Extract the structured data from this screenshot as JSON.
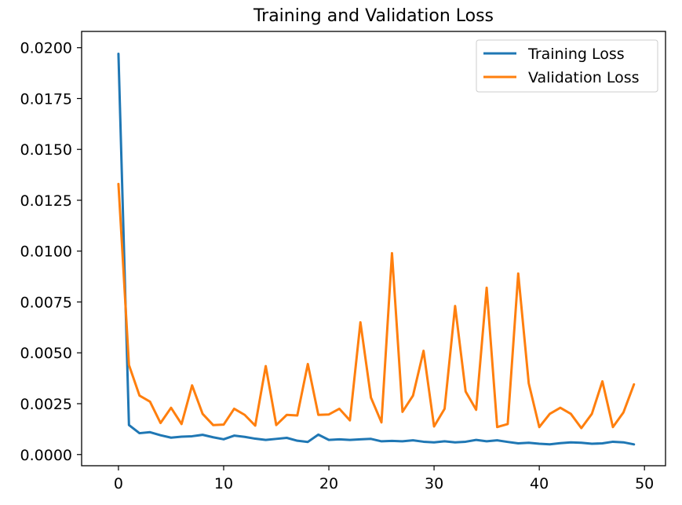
{
  "chart_data": {
    "type": "line",
    "title": "Training and Validation Loss",
    "xlabel": "",
    "ylabel": "",
    "xlim": [
      -3.5,
      52
    ],
    "ylim": [
      -0.00055,
      0.0208
    ],
    "x_ticks": [
      0,
      10,
      20,
      30,
      40,
      50
    ],
    "x_tick_labels": [
      "0",
      "10",
      "20",
      "30",
      "40",
      "50"
    ],
    "y_ticks": [
      0.0,
      0.0025,
      0.005,
      0.0075,
      0.01,
      0.0125,
      0.015,
      0.0175,
      0.02
    ],
    "y_tick_labels": [
      "0.0000",
      "0.0025",
      "0.0050",
      "0.0075",
      "0.0100",
      "0.0125",
      "0.0150",
      "0.0175",
      "0.0200"
    ],
    "grid": false,
    "legend_position": "top-right",
    "x": [
      0,
      1,
      2,
      3,
      4,
      5,
      6,
      7,
      8,
      9,
      10,
      11,
      12,
      13,
      14,
      15,
      16,
      17,
      18,
      19,
      20,
      21,
      22,
      23,
      24,
      25,
      26,
      27,
      28,
      29,
      30,
      31,
      32,
      33,
      34,
      35,
      36,
      37,
      38,
      39,
      40,
      41,
      42,
      43,
      44,
      45,
      46,
      47,
      48,
      49
    ],
    "series": [
      {
        "name": "Training Loss",
        "color": "#1f77b4",
        "values": [
          0.0197,
          0.00145,
          0.00105,
          0.0011,
          0.00095,
          0.00083,
          0.00088,
          0.0009,
          0.00097,
          0.00085,
          0.00075,
          0.00093,
          0.00087,
          0.00078,
          0.00072,
          0.00077,
          0.00082,
          0.00068,
          0.00062,
          0.00098,
          0.00072,
          0.00075,
          0.00072,
          0.00075,
          0.00077,
          0.00065,
          0.00067,
          0.00065,
          0.0007,
          0.00063,
          0.0006,
          0.00065,
          0.0006,
          0.00063,
          0.00072,
          0.00065,
          0.0007,
          0.00062,
          0.00055,
          0.00058,
          0.00053,
          0.0005,
          0.00056,
          0.0006,
          0.00058,
          0.00053,
          0.00055,
          0.00063,
          0.0006,
          0.0005
        ]
      },
      {
        "name": "Validation Loss",
        "color": "#ff7f0e",
        "values": [
          0.0133,
          0.0044,
          0.0029,
          0.0026,
          0.00155,
          0.0023,
          0.0015,
          0.0034,
          0.002,
          0.00145,
          0.00147,
          0.00225,
          0.00195,
          0.00142,
          0.00435,
          0.00145,
          0.00195,
          0.00192,
          0.00445,
          0.00195,
          0.00197,
          0.00225,
          0.00168,
          0.0065,
          0.0028,
          0.00158,
          0.0099,
          0.0021,
          0.0029,
          0.0051,
          0.00138,
          0.00225,
          0.0073,
          0.0031,
          0.0022,
          0.0082,
          0.00135,
          0.0015,
          0.0089,
          0.0035,
          0.00135,
          0.002,
          0.0023,
          0.002,
          0.0013,
          0.002,
          0.0036,
          0.00135,
          0.00207,
          0.00345
        ]
      }
    ]
  }
}
